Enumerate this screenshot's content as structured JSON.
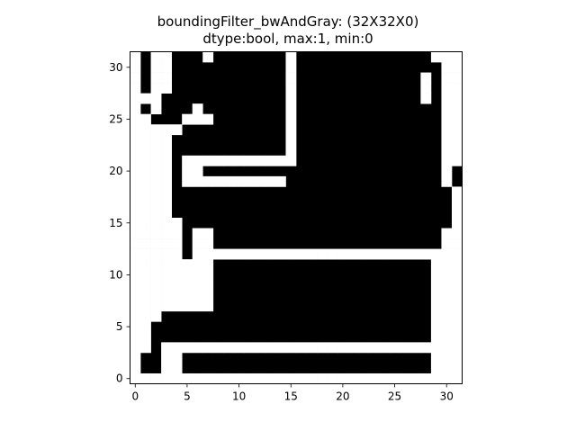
{
  "chart_data": {
    "type": "heatmap",
    "title": "boundingFilter_bwAndGray: (32X32X0)",
    "subtitle": "dtype:bool, max:1, min:0",
    "colormap": {
      "0": "#000000",
      "1": "#ffffff"
    },
    "xlim": [
      -0.5,
      31.5
    ],
    "ylim": [
      31.5,
      -0.5
    ],
    "xticks": [
      0,
      5,
      10,
      15,
      20,
      25,
      30
    ],
    "yticks": [
      0,
      5,
      10,
      15,
      20,
      25,
      30
    ],
    "grid": false,
    "rows": [
      "10110001000000010000000000000111",
      "10110000000000010000000000000011",
      "10110000000000010000000000001011",
      "10110000000000010000000000001011",
      "11100000000000010000000000001011",
      "10100010000000010000000000000011",
      "11000111000000010000000000000011",
      "11111000000000010000000000000011",
      "11110000000000010000000000000011",
      "11110000000000010000000000000011",
      "11110111111111110000000000000011",
      "11110110000000000000000000000010",
      "11110111111111100000000000000010",
      "11110000000000000000000000000001",
      "11110000000000000000000000000001",
      "11110000000000000000000000000001",
      "11111000000000000000000000000001",
      "11111011000000000000000000000011",
      "11111011000000000000000000000011",
      "11111011111111111111111111111111",
      "11111111000000000000000000000111",
      "11111111000000000000000000000111",
      "11111111000000000000000000000111",
      "11111111000000000000000000000111",
      "11111111000000000000000000000111",
      "11100000000000000000000000000111",
      "11000000000000000000000000000111",
      "11000000000000000000000000000111",
      "11011111111111111111111111111111",
      "10011000000000000000000000000111",
      "10011000000000000000000000000111",
      "11111111111111111111111111111111"
    ]
  }
}
